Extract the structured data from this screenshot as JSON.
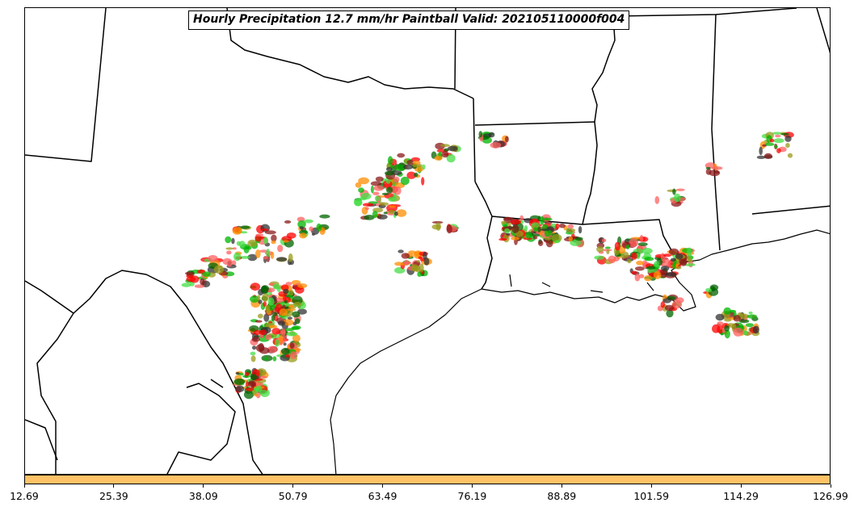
{
  "title": "Hourly Precipitation 12.7 mm/hr Paintball Valid: 202105110000f004",
  "colorbar": {
    "color": "#ffc266",
    "ticks": [
      "12.69",
      "25.39",
      "38.09",
      "50.79",
      "63.49",
      "76.19",
      "88.89",
      "101.59",
      "114.29",
      "126.99"
    ]
  },
  "member_colors": [
    "#ff0000",
    "#ff8c00",
    "#00b400",
    "#9a9a1a",
    "#8b1a1a",
    "#333333",
    "#44dd44",
    "#006400",
    "#ff6060"
  ]
}
